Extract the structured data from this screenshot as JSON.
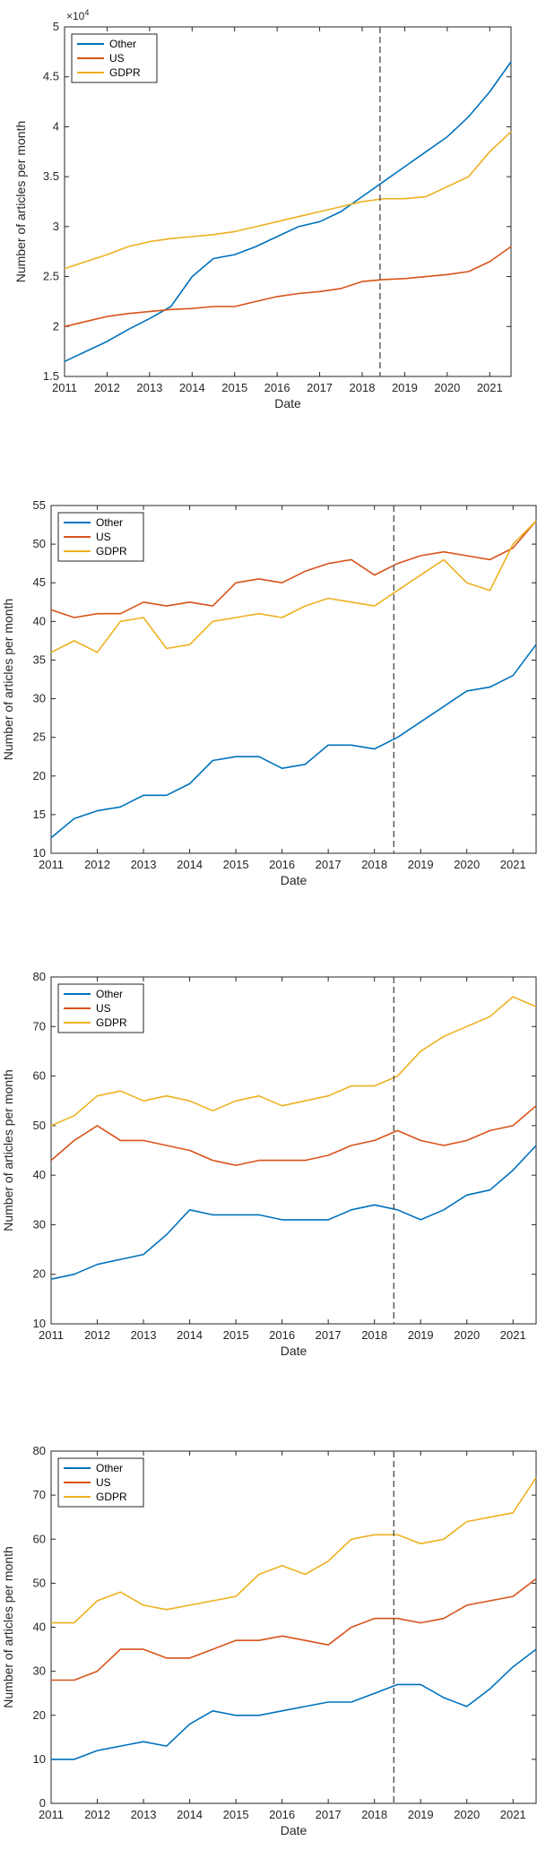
{
  "chart_data": [
    {
      "type": "line",
      "xlabel": "Date",
      "ylabel": "Number of articles per month",
      "y_exponent_label": "×10^4",
      "xlim": [
        2011,
        2021.5
      ],
      "ylim": [
        1.5,
        5
      ],
      "yticks": [
        1.5,
        2,
        2.5,
        3,
        3.5,
        4,
        4.5,
        5
      ],
      "xticks": [
        2011,
        2012,
        2013,
        2014,
        2015,
        2016,
        2017,
        2018,
        2019,
        2020,
        2021
      ],
      "vline_x": 2018.42,
      "legend_position": "top-left",
      "series": [
        {
          "name": "Other",
          "color": "#0072BD",
          "x": [
            2011,
            2011.5,
            2012,
            2012.5,
            2013,
            2013.5,
            2014,
            2014.5,
            2015,
            2015.5,
            2016,
            2016.5,
            2017,
            2017.5,
            2018,
            2018.5,
            2019,
            2019.5,
            2020,
            2020.5,
            2021,
            2021.5
          ],
          "y": [
            1.65,
            1.75,
            1.85,
            1.97,
            2.08,
            2.2,
            2.5,
            2.68,
            2.72,
            2.8,
            2.9,
            3.0,
            3.05,
            3.15,
            3.3,
            3.45,
            3.6,
            3.75,
            3.9,
            4.1,
            4.35,
            4.65
          ]
        },
        {
          "name": "US",
          "color": "#D95319",
          "x": [
            2011,
            2011.5,
            2012,
            2012.5,
            2013,
            2013.5,
            2014,
            2014.5,
            2015,
            2015.5,
            2016,
            2016.5,
            2017,
            2017.5,
            2018,
            2018.5,
            2019,
            2019.5,
            2020,
            2020.5,
            2021,
            2021.5
          ],
          "y": [
            2.0,
            2.05,
            2.1,
            2.13,
            2.15,
            2.17,
            2.18,
            2.2,
            2.2,
            2.25,
            2.3,
            2.33,
            2.35,
            2.38,
            2.45,
            2.47,
            2.48,
            2.5,
            2.52,
            2.55,
            2.65,
            2.8
          ]
        },
        {
          "name": "GDPR",
          "color": "#EDB120",
          "x": [
            2011,
            2011.5,
            2012,
            2012.5,
            2013,
            2013.5,
            2014,
            2014.5,
            2015,
            2015.5,
            2016,
            2016.5,
            2017,
            2017.5,
            2018,
            2018.5,
            2019,
            2019.5,
            2020,
            2020.5,
            2021,
            2021.5
          ],
          "y": [
            2.58,
            2.65,
            2.72,
            2.8,
            2.85,
            2.88,
            2.9,
            2.92,
            2.95,
            3.0,
            3.05,
            3.1,
            3.15,
            3.2,
            3.25,
            3.28,
            3.28,
            3.3,
            3.4,
            3.5,
            3.75,
            3.95
          ]
        }
      ]
    },
    {
      "type": "line",
      "xlabel": "Date",
      "ylabel": "Number of articles per month",
      "xlim": [
        2011,
        2021.5
      ],
      "ylim": [
        10,
        55
      ],
      "yticks": [
        10,
        15,
        20,
        25,
        30,
        35,
        40,
        45,
        50,
        55
      ],
      "xticks": [
        2011,
        2012,
        2013,
        2014,
        2015,
        2016,
        2017,
        2018,
        2019,
        2020,
        2021
      ],
      "vline_x": 2018.42,
      "legend_position": "top-left",
      "series": [
        {
          "name": "Other",
          "color": "#0072BD",
          "x": [
            2011,
            2011.5,
            2012,
            2012.5,
            2013,
            2013.5,
            2014,
            2014.5,
            2015,
            2015.5,
            2016,
            2016.5,
            2017,
            2017.5,
            2018,
            2018.5,
            2019,
            2019.5,
            2020,
            2020.5,
            2021,
            2021.5
          ],
          "y": [
            12,
            14.5,
            15.5,
            16,
            17.5,
            17.5,
            19,
            22,
            22.5,
            22.5,
            21,
            21.5,
            24,
            24,
            23.5,
            25,
            27,
            29,
            31,
            31.5,
            33,
            37
          ]
        },
        {
          "name": "US",
          "color": "#D95319",
          "x": [
            2011,
            2011.5,
            2012,
            2012.5,
            2013,
            2013.5,
            2014,
            2014.5,
            2015,
            2015.5,
            2016,
            2016.5,
            2017,
            2017.5,
            2018,
            2018.5,
            2019,
            2019.5,
            2020,
            2020.5,
            2021,
            2021.5
          ],
          "y": [
            41.5,
            40.5,
            41,
            41,
            42.5,
            42,
            42.5,
            42,
            45,
            45.5,
            45,
            46.5,
            47.5,
            48,
            46,
            47.5,
            48.5,
            49,
            48.5,
            48,
            49.5,
            53
          ]
        },
        {
          "name": "GDPR",
          "color": "#EDB120",
          "x": [
            2011,
            2011.5,
            2012,
            2012.5,
            2013,
            2013.5,
            2014,
            2014.5,
            2015,
            2015.5,
            2016,
            2016.5,
            2017,
            2017.5,
            2018,
            2018.5,
            2019,
            2019.5,
            2020,
            2020.5,
            2021,
            2021.5
          ],
          "y": [
            36,
            37.5,
            36,
            40,
            40.5,
            36.5,
            37,
            40,
            40.5,
            41,
            40.5,
            42,
            43,
            42.5,
            42,
            44,
            46,
            48,
            45,
            44,
            50,
            53
          ]
        }
      ]
    },
    {
      "type": "line",
      "xlabel": "Date",
      "ylabel": "Number of articles per month",
      "xlim": [
        2011,
        2021.5
      ],
      "ylim": [
        10,
        80
      ],
      "yticks": [
        10,
        20,
        30,
        40,
        50,
        60,
        70,
        80
      ],
      "xticks": [
        2011,
        2012,
        2013,
        2014,
        2015,
        2016,
        2017,
        2018,
        2019,
        2020,
        2021
      ],
      "vline_x": 2018.42,
      "legend_position": "top-left",
      "series": [
        {
          "name": "Other",
          "color": "#0072BD",
          "x": [
            2011,
            2011.5,
            2012,
            2012.5,
            2013,
            2013.5,
            2014,
            2014.5,
            2015,
            2015.5,
            2016,
            2016.5,
            2017,
            2017.5,
            2018,
            2018.5,
            2019,
            2019.5,
            2020,
            2020.5,
            2021,
            2021.5
          ],
          "y": [
            19,
            20,
            22,
            23,
            24,
            28,
            33,
            32,
            32,
            32,
            31,
            31,
            31,
            33,
            34,
            33,
            31,
            33,
            36,
            37,
            41,
            46
          ]
        },
        {
          "name": "US",
          "color": "#D95319",
          "x": [
            2011,
            2011.5,
            2012,
            2012.5,
            2013,
            2013.5,
            2014,
            2014.5,
            2015,
            2015.5,
            2016,
            2016.5,
            2017,
            2017.5,
            2018,
            2018.5,
            2019,
            2019.5,
            2020,
            2020.5,
            2021,
            2021.5
          ],
          "y": [
            43,
            47,
            50,
            47,
            47,
            46,
            45,
            43,
            42,
            43,
            43,
            43,
            44,
            46,
            47,
            49,
            47,
            46,
            47,
            49,
            50,
            54
          ]
        },
        {
          "name": "GDPR",
          "color": "#EDB120",
          "x": [
            2011,
            2011.5,
            2012,
            2012.5,
            2013,
            2013.5,
            2014,
            2014.5,
            2015,
            2015.5,
            2016,
            2016.5,
            2017,
            2017.5,
            2018,
            2018.5,
            2019,
            2019.5,
            2020,
            2020.5,
            2021,
            2021.5
          ],
          "y": [
            50,
            52,
            56,
            57,
            55,
            56,
            55,
            53,
            55,
            56,
            54,
            55,
            56,
            58,
            58,
            60,
            65,
            68,
            70,
            72,
            76,
            74
          ]
        }
      ]
    },
    {
      "type": "line",
      "xlabel": "Date",
      "ylabel": "Number of articles per month",
      "xlim": [
        2011,
        2021.5
      ],
      "ylim": [
        0,
        80
      ],
      "yticks": [
        0,
        10,
        20,
        30,
        40,
        50,
        60,
        70,
        80
      ],
      "xticks": [
        2011,
        2012,
        2013,
        2014,
        2015,
        2016,
        2017,
        2018,
        2019,
        2020,
        2021
      ],
      "vline_x": 2018.42,
      "legend_position": "top-left",
      "series": [
        {
          "name": "Other",
          "color": "#0072BD",
          "x": [
            2011,
            2011.5,
            2012,
            2012.5,
            2013,
            2013.5,
            2014,
            2014.5,
            2015,
            2015.5,
            2016,
            2016.5,
            2017,
            2017.5,
            2018,
            2018.5,
            2019,
            2019.5,
            2020,
            2020.5,
            2021,
            2021.5
          ],
          "y": [
            10,
            10,
            12,
            13,
            14,
            13,
            18,
            21,
            20,
            20,
            21,
            22,
            23,
            23,
            25,
            27,
            27,
            24,
            22,
            26,
            31,
            35
          ]
        },
        {
          "name": "US",
          "color": "#D95319",
          "x": [
            2011,
            2011.5,
            2012,
            2012.5,
            2013,
            2013.5,
            2014,
            2014.5,
            2015,
            2015.5,
            2016,
            2016.5,
            2017,
            2017.5,
            2018,
            2018.5,
            2019,
            2019.5,
            2020,
            2020.5,
            2021,
            2021.5
          ],
          "y": [
            28,
            28,
            30,
            35,
            35,
            33,
            33,
            35,
            37,
            37,
            38,
            37,
            36,
            40,
            42,
            42,
            41,
            42,
            45,
            46,
            47,
            51
          ]
        },
        {
          "name": "GDPR",
          "color": "#EDB120",
          "x": [
            2011,
            2011.5,
            2012,
            2012.5,
            2013,
            2013.5,
            2014,
            2014.5,
            2015,
            2015.5,
            2016,
            2016.5,
            2017,
            2017.5,
            2018,
            2018.5,
            2019,
            2019.5,
            2020,
            2020.5,
            2021,
            2021.5
          ],
          "y": [
            41,
            41,
            46,
            48,
            45,
            44,
            45,
            46,
            47,
            52,
            54,
            52,
            55,
            60,
            61,
            61,
            59,
            60,
            64,
            65,
            66,
            74
          ]
        }
      ]
    }
  ]
}
